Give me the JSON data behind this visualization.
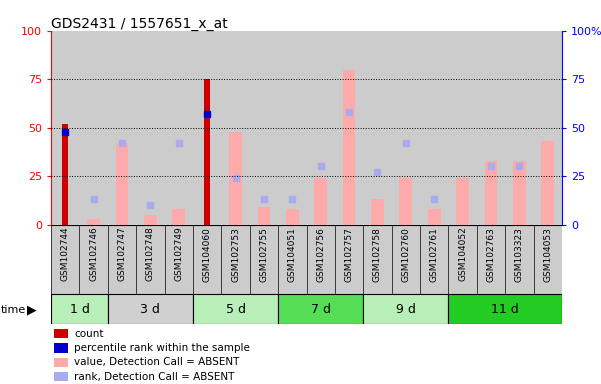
{
  "title": "GDS2431 / 1557651_x_at",
  "samples": [
    "GSM102744",
    "GSM102746",
    "GSM102747",
    "GSM102748",
    "GSM102749",
    "GSM104060",
    "GSM102753",
    "GSM102755",
    "GSM104051",
    "GSM102756",
    "GSM102757",
    "GSM102758",
    "GSM102760",
    "GSM102761",
    "GSM104052",
    "GSM102763",
    "GSM103323",
    "GSM104053"
  ],
  "time_groups": [
    {
      "label": "1 d",
      "start": 0,
      "end": 2,
      "color": "#b8efb8"
    },
    {
      "label": "3 d",
      "start": 2,
      "end": 5,
      "color": "#d0d0d0"
    },
    {
      "label": "5 d",
      "start": 5,
      "end": 8,
      "color": "#b8efb8"
    },
    {
      "label": "7 d",
      "start": 8,
      "end": 11,
      "color": "#55dd55"
    },
    {
      "label": "9 d",
      "start": 11,
      "end": 14,
      "color": "#b8efb8"
    },
    {
      "label": "11 d",
      "start": 14,
      "end": 18,
      "color": "#22cc22"
    }
  ],
  "count_bars": [
    52,
    0,
    0,
    0,
    0,
    75,
    0,
    0,
    0,
    0,
    0,
    0,
    0,
    0,
    0,
    0,
    0,
    0
  ],
  "percentile_rank": [
    48,
    0,
    0,
    0,
    0,
    57,
    0,
    0,
    0,
    0,
    0,
    0,
    0,
    0,
    0,
    0,
    0,
    0
  ],
  "value_absent": [
    0,
    3,
    42,
    5,
    8,
    0,
    48,
    9,
    8,
    24,
    80,
    13,
    24,
    8,
    24,
    33,
    33,
    43
  ],
  "rank_absent": [
    0,
    13,
    42,
    10,
    42,
    0,
    24,
    13,
    13,
    30,
    58,
    27,
    42,
    13,
    0,
    30,
    30,
    0
  ],
  "count_color": "#cc0000",
  "percentile_color": "#0000cc",
  "value_absent_color": "#ffaaaa",
  "rank_absent_color": "#aaaaee",
  "col_bg_color": "#cccccc",
  "plot_bg": "#ffffff",
  "ylim": [
    0,
    100
  ],
  "yticks": [
    0,
    25,
    50,
    75,
    100
  ],
  "grid_lines": [
    25,
    50,
    75
  ],
  "legend": [
    {
      "color": "#cc0000",
      "label": "count"
    },
    {
      "color": "#0000cc",
      "label": "percentile rank within the sample"
    },
    {
      "color": "#ffaaaa",
      "label": "value, Detection Call = ABSENT"
    },
    {
      "color": "#aaaaee",
      "label": "rank, Detection Call = ABSENT"
    }
  ]
}
